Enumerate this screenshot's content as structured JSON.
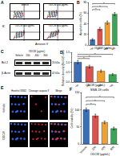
{
  "panel_labels": [
    "A",
    "B",
    "C",
    "D",
    "E",
    "F"
  ],
  "flow_cytometry": {
    "plots": [
      "Vehicle",
      "ODCW 200 μg/mL",
      "ODCW 400 μg/mL",
      "ODCW 800 μg/mL"
    ],
    "x_label": "Annexin V",
    "y_label": "PI"
  },
  "western_blot": {
    "treatment_label": "ODCW (μg/mL)",
    "lanes": [
      "Vehicle",
      "200",
      "400",
      "800"
    ],
    "bands": [
      {
        "name": "Bcl-2",
        "size": "26 kDa"
      },
      {
        "name": "β-Actin",
        "size": "42 kDa"
      }
    ]
  },
  "microscopy": {
    "columns": [
      "Hoechst 33342",
      "Cleavage caspase 3",
      "Merge"
    ],
    "rows": [
      "Vehicle",
      "ODCW"
    ]
  },
  "chart_data": [
    {
      "type": "bar",
      "x_label": "ODCW (μg/mL)",
      "y_label": "Apoptotic cells (%)",
      "categories": [
        "Vehicle",
        "200",
        "400",
        "800"
      ],
      "values": [
        10,
        30,
        42,
        58
      ],
      "error": [
        2,
        3,
        3,
        3
      ],
      "colors": [
        "#3b6fb6",
        "#d9534f",
        "#f0a030",
        "#3aa655"
      ],
      "ylim": [
        0,
        80
      ],
      "yticks": [
        0,
        20,
        40,
        60,
        80
      ],
      "significance": [
        {
          "from": 0,
          "to": 1,
          "label": "*"
        },
        {
          "from": 0,
          "to": 2,
          "label": "*"
        },
        {
          "from": 0,
          "to": 3,
          "label": "*"
        }
      ]
    },
    {
      "type": "bar",
      "x_label": "ODCW (μg/mL)",
      "y_label": "Relative density (Bcl-2/β-actin)",
      "categories": [
        "Vehicle",
        "200",
        "400",
        "800"
      ],
      "values": [
        1.0,
        0.78,
        0.55,
        0.38
      ],
      "error": [
        0.08,
        0.07,
        0.06,
        0.05
      ],
      "colors": [
        "#3b6fb6",
        "#d9534f",
        "#f0a030",
        "#3aa655"
      ],
      "ylim": [
        0,
        1.5
      ],
      "yticks": [
        {
          "value": 0,
          "label": "0.0"
        },
        0.5,
        {
          "value": 1,
          "label": "1.0"
        },
        1.5
      ],
      "significance": [
        {
          "from": 0,
          "to": 1,
          "label": "*"
        },
        {
          "from": 0,
          "to": 2,
          "label": "*"
        },
        {
          "from": 0,
          "to": 3,
          "label": "*"
        }
      ]
    },
    {
      "type": "bar",
      "title": "SNB-19 cells",
      "x_label": "ODCW (μg/mL)",
      "y_label": "Cell viability (%)",
      "categories": [
        "Vehicle",
        "200",
        "400",
        "800"
      ],
      "values": [
        100,
        82,
        63,
        45
      ],
      "error": [
        5,
        5,
        4,
        4
      ],
      "colors": [
        "#3b6fb6",
        "#d9534f",
        "#f0a030",
        "#3aa655"
      ],
      "ylim": [
        0,
        150
      ],
      "yticks": [
        0,
        50,
        100,
        150
      ],
      "significance": [
        {
          "from": 0,
          "to": 1,
          "label": "*"
        },
        {
          "from": 0,
          "to": 2,
          "label": "*"
        },
        {
          "from": 0,
          "to": 3,
          "label": "*"
        }
      ]
    }
  ]
}
